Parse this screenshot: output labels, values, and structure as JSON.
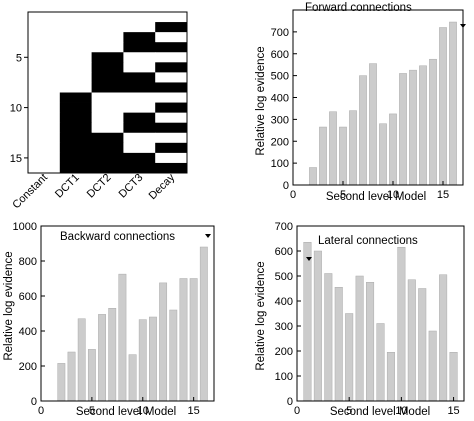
{
  "colors": {
    "bar": "#cccccc",
    "bar_edge": "#aaaaaa",
    "axis": "#000000",
    "matrix_on": "#000000",
    "matrix_off": "#ffffff"
  },
  "chart_data": [
    {
      "id": "design-matrix",
      "type": "heatmap",
      "title": "",
      "rows": 16,
      "columns": [
        "Constant",
        "DCT1",
        "DCT2",
        "DCT3",
        "Decay"
      ],
      "y_ticks": [
        5,
        10,
        15
      ],
      "ylim": [
        0.5,
        16.5
      ],
      "matrix": [
        [
          0,
          0,
          0,
          0,
          0
        ],
        [
          0,
          0,
          0,
          0,
          1
        ],
        [
          0,
          0,
          0,
          1,
          0
        ],
        [
          0,
          0,
          0,
          1,
          1
        ],
        [
          0,
          0,
          1,
          0,
          0
        ],
        [
          0,
          0,
          1,
          0,
          1
        ],
        [
          0,
          0,
          1,
          1,
          0
        ],
        [
          0,
          0,
          1,
          1,
          1
        ],
        [
          0,
          1,
          0,
          0,
          0
        ],
        [
          0,
          1,
          0,
          0,
          1
        ],
        [
          0,
          1,
          0,
          1,
          0
        ],
        [
          0,
          1,
          0,
          1,
          1
        ],
        [
          0,
          1,
          1,
          0,
          0
        ],
        [
          0,
          1,
          1,
          0,
          1
        ],
        [
          0,
          1,
          1,
          1,
          0
        ],
        [
          0,
          1,
          1,
          1,
          1
        ]
      ]
    },
    {
      "id": "forward",
      "type": "bar",
      "title": "Forward connections",
      "xlabel": "Second level Model",
      "ylabel": "Relative log evidence",
      "x": [
        2,
        3,
        4,
        5,
        6,
        7,
        8,
        9,
        10,
        11,
        12,
        13,
        14,
        15,
        16
      ],
      "values": [
        80,
        265,
        335,
        265,
        340,
        500,
        555,
        280,
        325,
        510,
        525,
        545,
        575,
        720,
        745
      ],
      "xlim": [
        0,
        17
      ],
      "ylim": [
        0,
        800
      ],
      "x_ticks": [
        0,
        5,
        10,
        15
      ],
      "y_ticks": [
        0,
        100,
        200,
        300,
        400,
        500,
        600,
        700
      ]
    },
    {
      "id": "backward",
      "type": "bar",
      "title": "Backward connections",
      "xlabel": "Second level Model",
      "ylabel": "Relative log evidence",
      "x": [
        2,
        3,
        4,
        5,
        6,
        7,
        8,
        9,
        10,
        11,
        12,
        13,
        14,
        15,
        16
      ],
      "values": [
        215,
        280,
        470,
        295,
        495,
        530,
        725,
        265,
        465,
        480,
        675,
        520,
        700,
        700,
        880
      ],
      "xlim": [
        0,
        17
      ],
      "ylim": [
        0,
        1000
      ],
      "x_ticks": [
        0,
        5,
        10,
        15
      ],
      "y_ticks": [
        0,
        200,
        400,
        600,
        800,
        1000
      ]
    },
    {
      "id": "lateral",
      "type": "bar",
      "title": "Lateral connections",
      "xlabel": "Second level Model",
      "ylabel": "Relative log evidence",
      "x": [
        1,
        2,
        3,
        4,
        5,
        6,
        7,
        8,
        9,
        10,
        11,
        12,
        13,
        14,
        15
      ],
      "values": [
        635,
        600,
        510,
        455,
        350,
        500,
        475,
        310,
        195,
        615,
        485,
        450,
        280,
        505,
        195
      ],
      "xlim": [
        0,
        16
      ],
      "ylim": [
        0,
        700
      ],
      "x_ticks": [
        0,
        5,
        10,
        15
      ],
      "y_ticks": [
        0,
        100,
        200,
        300,
        400,
        500,
        600,
        700
      ]
    }
  ]
}
